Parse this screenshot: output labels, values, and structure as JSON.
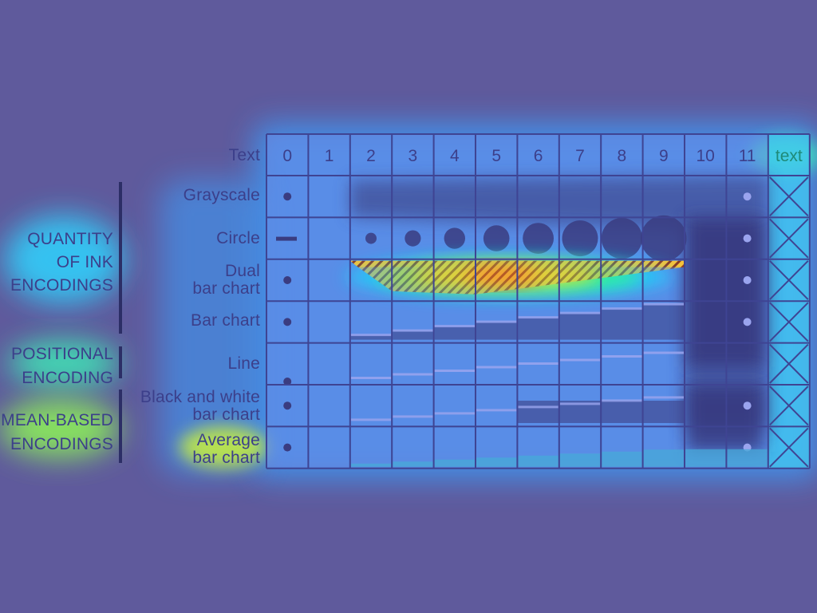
{
  "header": {
    "row_header_label": "Text",
    "columns": [
      "0",
      "1",
      "2",
      "3",
      "4",
      "5",
      "6",
      "7",
      "8",
      "9",
      "10",
      "11"
    ],
    "text_column_label": "text"
  },
  "rows": [
    {
      "label_lines": [
        "Grayscale"
      ],
      "encoding": "grayscale"
    },
    {
      "label_lines": [
        "Circle"
      ],
      "encoding": "circle"
    },
    {
      "label_lines": [
        "Dual",
        "bar chart"
      ],
      "encoding": "dual-bar"
    },
    {
      "label_lines": [
        "Bar chart"
      ],
      "encoding": "bar"
    },
    {
      "label_lines": [
        "Line"
      ],
      "encoding": "line"
    },
    {
      "label_lines": [
        "Black and white",
        "bar chart"
      ],
      "encoding": "bw-bar"
    },
    {
      "label_lines": [
        "Average",
        "bar chart"
      ],
      "encoding": "avg-bar"
    }
  ],
  "groups": [
    {
      "label_lines": [
        "QUANTITY",
        "OF INK",
        "ENCODINGS"
      ],
      "rows": [
        0,
        3
      ]
    },
    {
      "label_lines": [
        "POSITIONAL",
        "ENCODING"
      ],
      "rows": [
        4,
        4
      ]
    },
    {
      "label_lines": [
        "MEAN-BASED",
        "ENCODINGS"
      ],
      "rows": [
        5,
        6
      ]
    }
  ],
  "colors": {
    "background": "#5f5a9c",
    "grid": "#3f4493",
    "text": "#3c3f8a",
    "cell_glow": "#6b8de8",
    "dark_mark": "#3a3c80",
    "heat_hot": "#ff3d1f",
    "heat_warm": "#ffe21a",
    "heat_mid": "#2dfb87",
    "heat_cool": "#1fd6ff"
  }
}
